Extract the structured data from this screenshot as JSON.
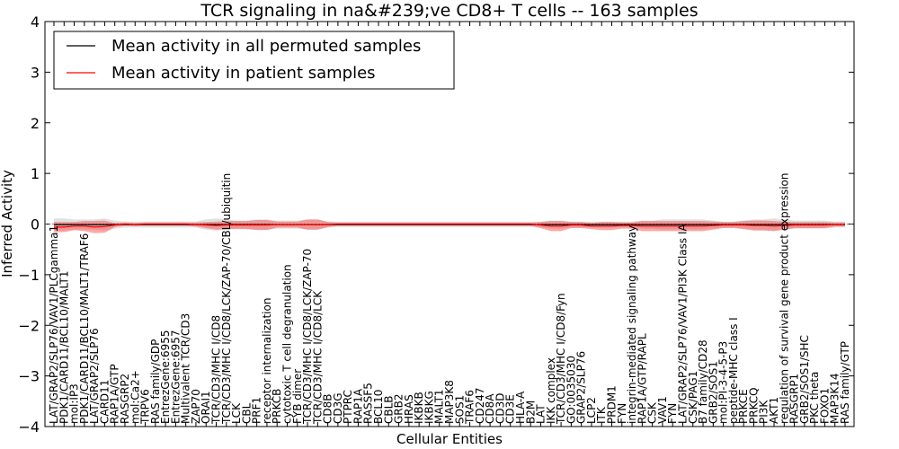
{
  "chart_data": {
    "type": "line",
    "title": "TCR signaling in na&#239;ve CD8+ T cells -- 163 samples",
    "xlabel": "Cellular Entities",
    "ylabel": "Inferred Activity",
    "ylim": [
      -4,
      4
    ],
    "yticks": [
      -4,
      -3,
      -2,
      -1,
      0,
      1,
      2,
      3,
      4
    ],
    "legend_position": "top-left",
    "categories": [
      "LAT/GRAP2/SLP76/VAV1/PLCgamma1",
      "PDK1/CARD11/BCL10/MALT1",
      "mol:IP3",
      "PDK1/CARD11/BCL10/MALT1/TRAF6",
      "LAT/GRAP2/SLP76",
      "CARD11",
      "RAP1A/GTP",
      "RASGRP2",
      "mol:Ca2+",
      "TRPV6",
      "RAS family/GDP",
      "EntrezGene:6955",
      "EntrezGene:6957",
      "Multivalent TCR/CD3",
      "ZAP70",
      "ORAI1",
      "TCR/CD3/MHC I/CD8",
      "TCR/CD3/MHC I/CD8/LCK/ZAP-70/CBL/ubiquitin",
      "LCK",
      "CBL",
      "PRF1",
      "receptor internalization",
      "PRKCB",
      "cytotoxic T cell degranulation",
      "FYB dimer",
      "TCR/CD3/MHC I/CD8/LCK/ZAP-70",
      "TCR/CD3/MHC I/CD8/LCK",
      "CD8B",
      "CD3G",
      "PTPRC",
      "RAP1A",
      "RASSF5",
      "BCL10",
      "CBLB",
      "GRB2",
      "HRAS",
      "IKBKB",
      "IKBKG",
      "MALT1",
      "MAP3K8",
      "SOS1",
      "TRAF6",
      "CD247",
      "CD8A",
      "CD3D",
      "CD3E",
      "HLA-A",
      "B2M",
      "LAT",
      "IKK complex",
      "TCR/CD3/MHC I/CD8/Fyn",
      "GO:0035030",
      "GRAP2/SLP76",
      "LCP2",
      "ITK",
      "PRDM1",
      "FYN",
      "integrin-mediated signaling pathway",
      "RAP1A/GTP/RAPL",
      "CSK",
      "VAV1",
      "FYN",
      "LAT/GRAP2/SLP76/VAV1/PI3K Class IA",
      "CSK/PAG1",
      "B7 family/CD28",
      "GRB2/SOS1",
      "mol:PI-3-4-5-P3",
      "peptide-MHC class I",
      "PRKCE",
      "PRKCQ",
      "PI3K",
      "AKT1",
      "regulation of survival gene product expression",
      "RASGRP1",
      "GRB2/SOS1/SHC",
      "PKC theta",
      "FOXO1",
      "MAP3K14",
      "RAS family/GTP"
    ],
    "series": [
      {
        "name": "Mean activity in all permuted samples",
        "color": "#000000",
        "values": [
          -0.01,
          -0.01,
          -0.01,
          -0.01,
          -0.01,
          -0.01,
          -0.01,
          -0.01,
          -0.01,
          -0.01,
          -0.01,
          -0.01,
          -0.01,
          -0.01,
          -0.01,
          -0.01,
          -0.01,
          -0.01,
          -0.01,
          -0.01,
          -0.01,
          -0.01,
          -0.01,
          -0.01,
          -0.01,
          -0.01,
          -0.01,
          -0.01,
          -0.01,
          -0.01,
          -0.01,
          -0.01,
          -0.01,
          -0.01,
          -0.01,
          -0.01,
          -0.01,
          -0.01,
          -0.01,
          -0.01,
          -0.01,
          -0.01,
          -0.01,
          -0.01,
          -0.01,
          -0.01,
          -0.01,
          -0.01,
          -0.01,
          -0.01,
          -0.01,
          -0.01,
          -0.01,
          -0.01,
          -0.01,
          -0.01,
          -0.01,
          -0.01,
          -0.01,
          -0.01,
          -0.01,
          -0.01,
          -0.01,
          -0.01,
          -0.01,
          -0.01,
          -0.01,
          -0.01,
          -0.01,
          -0.01,
          -0.01,
          -0.01,
          -0.01,
          -0.01,
          -0.01,
          -0.01,
          -0.01,
          -0.01,
          -0.01
        ],
        "band": [
          0.12,
          0.12,
          0.1,
          0.1,
          0.1,
          0.12,
          0.08,
          0.06,
          0.06,
          0.06,
          0.06,
          0.06,
          0.06,
          0.06,
          0.06,
          0.1,
          0.12,
          0.1,
          0.08,
          0.08,
          0.1,
          0.1,
          0.08,
          0.08,
          0.08,
          0.1,
          0.1,
          0.06,
          0.05,
          0.05,
          0.05,
          0.05,
          0.05,
          0.05,
          0.05,
          0.05,
          0.05,
          0.05,
          0.05,
          0.05,
          0.05,
          0.05,
          0.05,
          0.05,
          0.05,
          0.05,
          0.05,
          0.05,
          0.06,
          0.08,
          0.08,
          0.06,
          0.06,
          0.06,
          0.06,
          0.06,
          0.06,
          0.06,
          0.08,
          0.08,
          0.1,
          0.1,
          0.1,
          0.1,
          0.1,
          0.08,
          0.06,
          0.06,
          0.08,
          0.1,
          0.1,
          0.12,
          0.1,
          0.08,
          0.08,
          0.08,
          0.08,
          0.06,
          0.06
        ]
      },
      {
        "name": "Mean activity in patient samples",
        "color": "#ff0000",
        "values": [
          -0.06,
          -0.06,
          -0.04,
          -0.04,
          -0.06,
          -0.05,
          -0.02,
          0.0,
          -0.01,
          0.0,
          0.0,
          0.0,
          0.0,
          0.0,
          -0.01,
          -0.02,
          -0.03,
          -0.02,
          -0.02,
          -0.02,
          -0.02,
          -0.02,
          -0.01,
          -0.01,
          -0.01,
          -0.01,
          -0.01,
          -0.01,
          0.0,
          0.0,
          0.0,
          0.0,
          0.0,
          0.0,
          0.0,
          0.0,
          0.0,
          0.0,
          0.0,
          0.0,
          0.0,
          0.0,
          0.0,
          0.0,
          0.0,
          0.0,
          0.0,
          0.0,
          -0.02,
          -0.04,
          -0.04,
          -0.02,
          -0.02,
          -0.04,
          -0.04,
          -0.04,
          -0.03,
          -0.03,
          -0.04,
          -0.04,
          -0.04,
          -0.04,
          -0.04,
          -0.04,
          -0.04,
          -0.03,
          -0.02,
          -0.02,
          -0.02,
          -0.03,
          -0.03,
          -0.04,
          -0.03,
          -0.02,
          -0.02,
          -0.02,
          -0.02,
          -0.01,
          -0.01
        ],
        "band": [
          0.1,
          0.1,
          0.08,
          0.1,
          0.12,
          0.12,
          0.04,
          0.03,
          0.03,
          0.03,
          0.03,
          0.03,
          0.03,
          0.03,
          0.04,
          0.06,
          0.08,
          0.08,
          0.08,
          0.08,
          0.1,
          0.1,
          0.06,
          0.06,
          0.06,
          0.1,
          0.1,
          0.05,
          0.03,
          0.03,
          0.03,
          0.03,
          0.03,
          0.03,
          0.03,
          0.03,
          0.03,
          0.03,
          0.03,
          0.03,
          0.03,
          0.03,
          0.03,
          0.03,
          0.03,
          0.03,
          0.03,
          0.03,
          0.06,
          0.1,
          0.1,
          0.06,
          0.06,
          0.06,
          0.08,
          0.08,
          0.06,
          0.06,
          0.1,
          0.1,
          0.1,
          0.1,
          0.1,
          0.1,
          0.1,
          0.08,
          0.06,
          0.06,
          0.08,
          0.1,
          0.1,
          0.1,
          0.08,
          0.06,
          0.06,
          0.06,
          0.06,
          0.04,
          0.04
        ]
      }
    ]
  }
}
